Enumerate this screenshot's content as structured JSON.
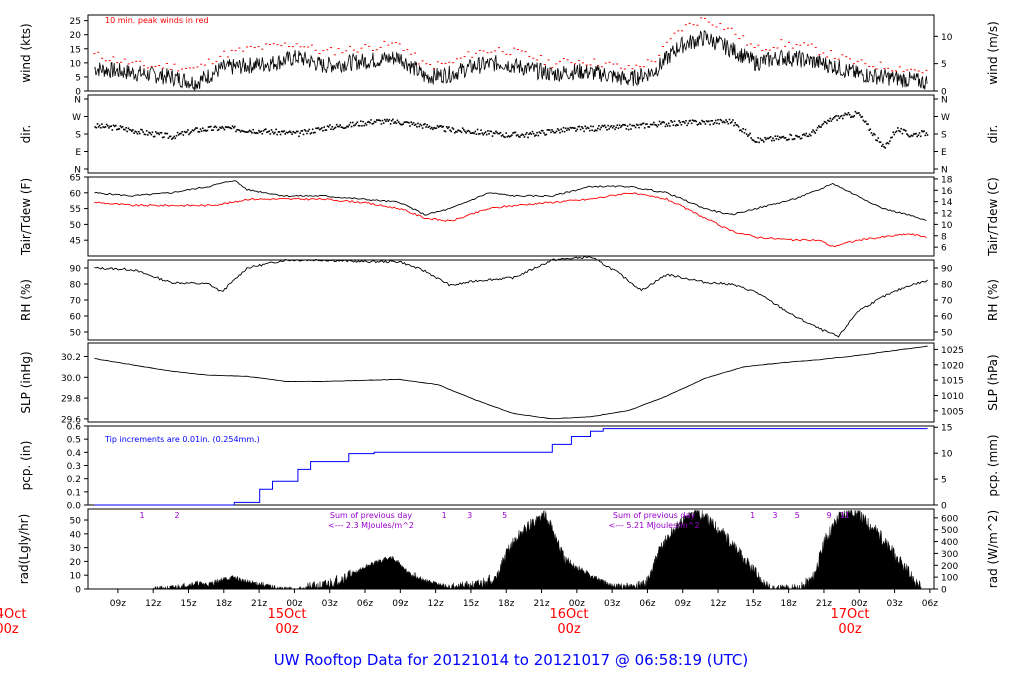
{
  "title": "UW Rooftop Data for 20121014  to  20121017 @ 06:58:19  (UTC)",
  "colors": {
    "frame": "#000000",
    "red": "#ff0000",
    "blue": "#0000ff",
    "purple": "#9900cc",
    "date_red": "#ff0000",
    "title_blue": "#0000ff"
  },
  "x_axis": {
    "hour_ticks": [
      "09z",
      "12z",
      "15z",
      "18z",
      "21z",
      "00z",
      "03z",
      "06z",
      "09z",
      "12z",
      "15z",
      "18z",
      "21z",
      "00z",
      "03z",
      "06z",
      "09z",
      "12z",
      "15z",
      "18z",
      "21z",
      "00z",
      "03z",
      "06z"
    ],
    "date_labels": [
      {
        "day": "14Oct",
        "hour": "00z"
      },
      {
        "day": "15Oct",
        "hour": "00z"
      },
      {
        "day": "16Oct",
        "hour": "00z"
      },
      {
        "day": "17Oct",
        "hour": "00z"
      }
    ]
  },
  "chart_data": [
    {
      "type": "line",
      "panel": "wind",
      "ylabel_left": "wind (kts)",
      "ylabel_right": "wind (m/s)",
      "ylim": [
        0,
        27
      ],
      "yticks_left": [
        "0",
        "5",
        "10",
        "15",
        "20",
        "25"
      ],
      "yticks_right": [
        "0",
        "5",
        "10"
      ],
      "annotation": "10 min. peak winds in red",
      "series": [
        {
          "name": "wind",
          "x_hours": [
            0,
            4,
            8,
            12,
            16,
            20,
            24,
            28,
            32,
            36,
            40,
            44,
            48,
            52,
            56,
            60,
            64,
            68,
            72,
            76,
            80,
            84,
            88,
            92,
            96,
            100,
            104,
            108,
            112,
            116,
            120,
            124,
            128,
            131
          ],
          "values": [
            8,
            7,
            6,
            5,
            3,
            8,
            9,
            10,
            12,
            9,
            10,
            11,
            12,
            5,
            6,
            9,
            10,
            8,
            6,
            7,
            6,
            4,
            7,
            16,
            19,
            15,
            10,
            12,
            11,
            9,
            6,
            5,
            4,
            3
          ]
        },
        {
          "name": "10 min. peak winds",
          "x_hours": [
            0,
            4,
            8,
            12,
            16,
            20,
            24,
            28,
            32,
            36,
            40,
            44,
            48,
            52,
            56,
            60,
            64,
            68,
            72,
            76,
            80,
            84,
            88,
            92,
            96,
            100,
            104,
            108,
            112,
            116,
            120,
            124,
            128,
            131
          ],
          "values": [
            13,
            11,
            9,
            9,
            8,
            13,
            15,
            16,
            17,
            14,
            15,
            16,
            17,
            9,
            10,
            14,
            15,
            13,
            10,
            11,
            10,
            8,
            11,
            22,
            26,
            22,
            15,
            17,
            16,
            13,
            10,
            9,
            8,
            7
          ]
        }
      ]
    },
    {
      "type": "scatter",
      "panel": "dir",
      "ylabel_left": "dir.",
      "ylabel_right": "dir.",
      "yticks": [
        "N",
        "W",
        "S",
        "E",
        "N"
      ],
      "x_hours": [
        0,
        4,
        8,
        12,
        16,
        20,
        24,
        28,
        32,
        36,
        40,
        44,
        48,
        52,
        56,
        60,
        64,
        68,
        72,
        76,
        80,
        84,
        88,
        92,
        96,
        100,
        104,
        108,
        112,
        116,
        120,
        124,
        126,
        128,
        131
      ],
      "values_deg": [
        225,
        215,
        190,
        170,
        205,
        215,
        205,
        195,
        185,
        215,
        230,
        250,
        245,
        225,
        205,
        195,
        180,
        180,
        200,
        210,
        215,
        220,
        235,
        240,
        245,
        250,
        150,
        165,
        175,
        265,
        290,
        110,
        210,
        180,
        190
      ]
    },
    {
      "type": "line",
      "panel": "temperature",
      "ylabel_left": "Tair/Tdew (F)",
      "ylabel_right": "Tair/Tdew (C)",
      "ylim": [
        40,
        65
      ],
      "yticks_left": [
        "45",
        "50",
        "55",
        "60",
        "65"
      ],
      "yticks_right": [
        "6",
        "8",
        "10",
        "12",
        "14",
        "16",
        "18"
      ],
      "x_hours": [
        0,
        6,
        12,
        18,
        22,
        24,
        30,
        36,
        42,
        48,
        52,
        56,
        62,
        66,
        72,
        78,
        84,
        90,
        96,
        100,
        104,
        110,
        114,
        116,
        120,
        124,
        128,
        131
      ],
      "series": [
        {
          "name": "Tair",
          "color": "red_black",
          "values": [
            60,
            59,
            60,
            62,
            64,
            61,
            59,
            59,
            58,
            57,
            53,
            55,
            60,
            59,
            59,
            62,
            62,
            60,
            55,
            53,
            55,
            58,
            61,
            63,
            59,
            55,
            53,
            51
          ]
        },
        {
          "name": "Tdew",
          "values": [
            57,
            56,
            56,
            56,
            57,
            58,
            58,
            58,
            57,
            55,
            52,
            51,
            55,
            56,
            57,
            58,
            60,
            58,
            52,
            48,
            46,
            45,
            45,
            43,
            45,
            46,
            47,
            46
          ]
        }
      ]
    },
    {
      "type": "line",
      "panel": "RH",
      "ylabel_left": "RH (%)",
      "ylabel_right": "RH (%)",
      "ylim": [
        45,
        95
      ],
      "yticks": [
        "50",
        "60",
        "70",
        "80",
        "90"
      ],
      "x_hours": [
        0,
        6,
        12,
        18,
        20,
        24,
        30,
        36,
        42,
        48,
        52,
        56,
        60,
        66,
        72,
        78,
        82,
        86,
        90,
        96,
        100,
        104,
        110,
        114,
        117,
        120,
        124,
        128,
        131
      ],
      "series": [
        {
          "name": "RH",
          "values": [
            90,
            89,
            81,
            80,
            75,
            90,
            95,
            95,
            94,
            94,
            88,
            79,
            82,
            84,
            95,
            97,
            88,
            76,
            86,
            81,
            80,
            75,
            60,
            52,
            47,
            63,
            72,
            79,
            82
          ]
        }
      ]
    },
    {
      "type": "line",
      "panel": "pressure",
      "ylabel_left": "SLP (inHg)",
      "ylabel_right": "SLP (hPa)",
      "ylim": [
        29.57,
        30.33
      ],
      "yticks_left": [
        "29.6",
        "29.8",
        "30.0",
        "30.2"
      ],
      "yticks_right": [
        "1005",
        "1010",
        "1015",
        "1020",
        "1025"
      ],
      "x_hours": [
        0,
        6,
        12,
        18,
        24,
        30,
        36,
        42,
        48,
        54,
        60,
        66,
        72,
        78,
        84,
        90,
        96,
        102,
        108,
        114,
        120,
        126,
        131
      ],
      "series": [
        {
          "name": "SLP",
          "values": [
            30.18,
            30.12,
            30.06,
            30.02,
            30.01,
            29.96,
            29.96,
            29.97,
            29.98,
            29.93,
            29.78,
            29.65,
            29.6,
            29.62,
            29.68,
            29.82,
            29.99,
            30.1,
            30.14,
            30.17,
            30.21,
            30.26,
            30.3
          ]
        }
      ]
    },
    {
      "type": "line",
      "panel": "precipitation",
      "ylabel_left": "pcp. (in)",
      "ylabel_right": "pcp. (mm)",
      "ylim": [
        0,
        0.6
      ],
      "yticks_left": [
        "0.0",
        "0.1",
        "0.2",
        "0.3",
        "0.4",
        "0.5",
        "0.6"
      ],
      "yticks_right": [
        "0",
        "5",
        "10",
        "15"
      ],
      "annotation": "Tip increments are 0.01in. (0.254mm.)",
      "series": [
        {
          "name": "pcp",
          "x_hours": [
            0,
            20,
            22,
            26,
            28,
            32,
            34,
            40,
            44,
            48,
            52,
            60,
            70,
            72,
            75,
            78,
            80,
            131
          ],
          "values": [
            0,
            0,
            0.02,
            0.12,
            0.18,
            0.27,
            0.33,
            0.39,
            0.4,
            0.4,
            0.4,
            0.4,
            0.4,
            0.46,
            0.52,
            0.56,
            0.58,
            0.58
          ]
        }
      ]
    },
    {
      "type": "area",
      "panel": "radiation",
      "ylabel_left": "rad(Lgly/hr)",
      "ylabel_right": "rad (W/m^2)",
      "ylim": [
        0,
        58
      ],
      "yticks_left": [
        "0",
        "10",
        "20",
        "30",
        "40",
        "50"
      ],
      "yticks_right": [
        "0",
        "100",
        "200",
        "300",
        "400",
        "500",
        "600"
      ],
      "hour_marks": [
        "1",
        "2",
        "1",
        "3",
        "5",
        "1",
        "3",
        "5",
        "9",
        "11"
      ],
      "day_sums": [
        {
          "label": "Sum of previous day",
          "value": "<--- 2.3 MJoules/m^2"
        },
        {
          "label": "Sum of previous day",
          "value": "<--- 5.21 MJoules/m^2"
        }
      ],
      "series": [
        {
          "name": "radiation",
          "x_hours": [
            9,
            12,
            14,
            16,
            18,
            20,
            22,
            24,
            26,
            28,
            30,
            33,
            37,
            39,
            41,
            43,
            45,
            47,
            50,
            54,
            57,
            63,
            65,
            67,
            69,
            71,
            73,
            75,
            78,
            82
          ],
          "values": [
            0,
            2,
            6,
            10,
            8,
            16,
            20,
            12,
            9,
            3,
            0,
            0,
            0,
            5,
            28,
            40,
            48,
            55,
            20,
            8,
            0,
            0,
            8,
            35,
            50,
            55,
            48,
            40,
            22,
            0
          ]
        }
      ]
    }
  ]
}
